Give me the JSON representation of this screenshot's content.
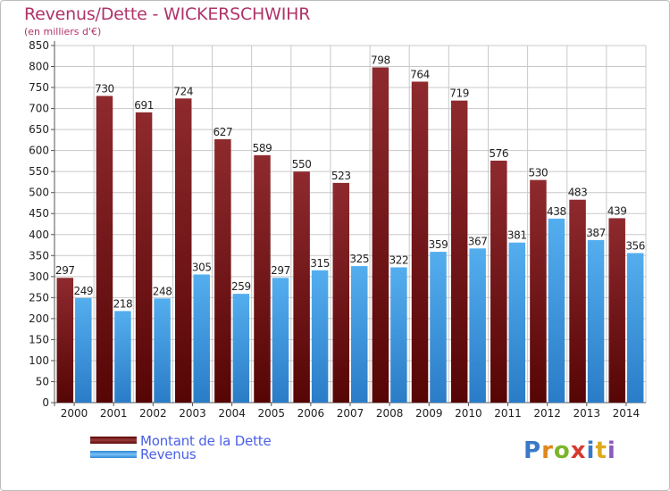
{
  "header": {
    "title": "Revenus/Dette - WICKERSCHWIHR",
    "subtitle": "(en milliers d'€)"
  },
  "chart_data": {
    "type": "bar",
    "title": "Revenus/Dette - WICKERSCHWIHR",
    "ylabel": "(en milliers d'€)",
    "ylim": [
      0,
      850
    ],
    "ytick_step": 50,
    "grid": true,
    "categories": [
      "2000",
      "2001",
      "2002",
      "2003",
      "2004",
      "2005",
      "2006",
      "2007",
      "2008",
      "2009",
      "2010",
      "2011",
      "2012",
      "2013",
      "2014"
    ],
    "series": [
      {
        "name": "Montant de la Dette",
        "color": "#7a1515",
        "values": [
          297,
          730,
          691,
          724,
          627,
          589,
          550,
          523,
          798,
          764,
          719,
          576,
          530,
          483,
          439
        ]
      },
      {
        "name": "Revenus",
        "color": "#3d9be3",
        "values": [
          249,
          218,
          248,
          305,
          259,
          297,
          315,
          325,
          322,
          359,
          367,
          381,
          438,
          387,
          356
        ]
      }
    ]
  },
  "legend": {
    "debt_label": "Montant de la Dette",
    "revenue_label": "Revenus"
  },
  "logo": {
    "text": "Proxiti"
  }
}
